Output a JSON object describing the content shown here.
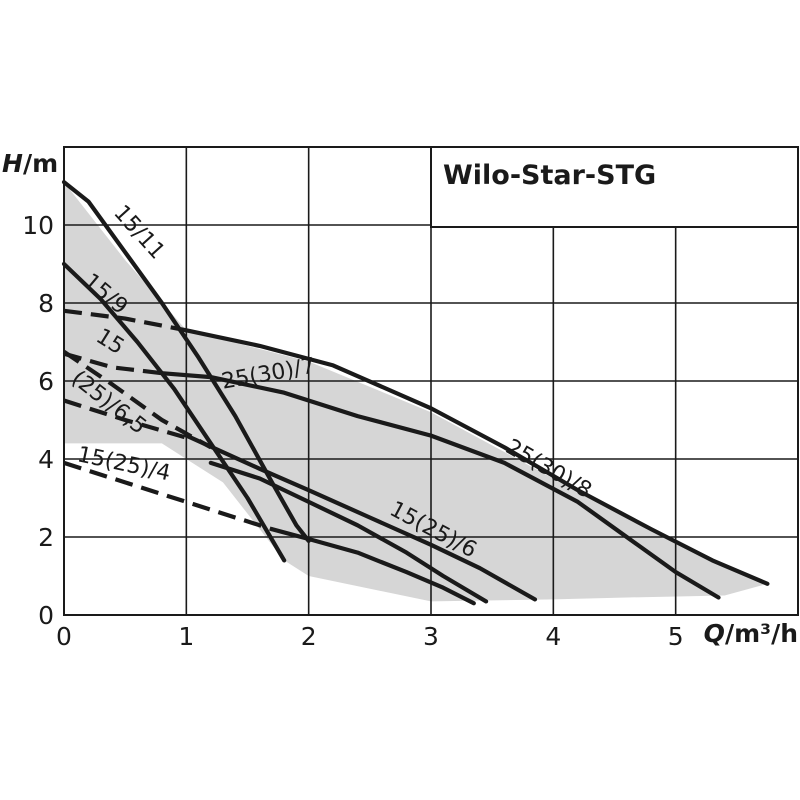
{
  "title": "Wilo-Star-STG",
  "colors": {
    "ink": "#1a1a1a",
    "envelope": "#d6d6d6",
    "background": "#ffffff"
  },
  "chart_data": {
    "type": "line",
    "title": "Wilo-Star-STG",
    "x_axis": {
      "label_var": "Q",
      "label_unit": "/m³/h",
      "min": 0,
      "max": 6,
      "ticks": [
        0,
        1,
        2,
        3,
        4,
        5
      ],
      "grid_step": 1
    },
    "y_axis": {
      "label_var": "H",
      "label_unit": "/m",
      "min": 0,
      "max": 12,
      "ticks": [
        0,
        2,
        4,
        6,
        8,
        10
      ],
      "grid_step": 2
    },
    "grid": true,
    "envelope": [
      [
        0,
        11.1
      ],
      [
        0.5,
        9.1
      ],
      [
        1,
        7.3
      ],
      [
        2,
        6.5
      ],
      [
        3,
        5.2
      ],
      [
        4,
        3.5
      ],
      [
        5,
        1.9
      ],
      [
        5.75,
        0.8
      ],
      [
        5.4,
        0.5
      ],
      [
        4.6,
        0.45
      ],
      [
        4,
        0.4
      ],
      [
        3,
        0.35
      ],
      [
        2,
        1.0
      ],
      [
        1.8,
        1.4
      ],
      [
        1.3,
        3.4
      ],
      [
        1,
        4.0
      ],
      [
        0.8,
        4.4
      ],
      [
        0,
        4.4
      ]
    ],
    "series": [
      {
        "name": "15/11",
        "dashed": false,
        "points": [
          [
            0,
            11.1
          ],
          [
            0.2,
            10.6
          ],
          [
            0.5,
            9.3
          ],
          [
            0.8,
            8.0
          ],
          [
            1.1,
            6.6
          ],
          [
            1.4,
            5.1
          ],
          [
            1.7,
            3.4
          ],
          [
            1.9,
            2.3
          ],
          [
            2.0,
            1.9
          ]
        ]
      },
      {
        "name": "15/9",
        "dashed": false,
        "points": [
          [
            0,
            9.0
          ],
          [
            0.3,
            8.1
          ],
          [
            0.6,
            7.0
          ],
          [
            0.9,
            5.8
          ],
          [
            1.2,
            4.4
          ],
          [
            1.5,
            3.0
          ],
          [
            1.8,
            1.4
          ]
        ]
      },
      {
        "name": "25(30)/8",
        "dashed": false,
        "points": [
          [
            1.0,
            7.3
          ],
          [
            1.6,
            6.9
          ],
          [
            2.2,
            6.4
          ],
          [
            3.0,
            5.3
          ],
          [
            3.6,
            4.3
          ],
          [
            4.2,
            3.2
          ],
          [
            4.8,
            2.2
          ],
          [
            5.3,
            1.4
          ],
          [
            5.75,
            0.8
          ]
        ]
      },
      {
        "name": "25(30)/7",
        "dashed": false,
        "points": [
          [
            0.8,
            6.2
          ],
          [
            1.2,
            6.1
          ],
          [
            1.8,
            5.7
          ],
          [
            2.4,
            5.1
          ],
          [
            3.0,
            4.6
          ],
          [
            3.6,
            3.9
          ],
          [
            4.2,
            2.9
          ],
          [
            4.6,
            2.0
          ],
          [
            5.0,
            1.1
          ],
          [
            5.35,
            0.45
          ]
        ]
      },
      {
        "name": "15(25)/6",
        "dashed": false,
        "points": [
          [
            1.0,
            4.6
          ],
          [
            1.6,
            3.75
          ],
          [
            2.0,
            3.2
          ],
          [
            2.5,
            2.5
          ],
          [
            3.0,
            1.8
          ],
          [
            3.4,
            1.2
          ],
          [
            3.85,
            0.4
          ]
        ]
      },
      {
        "name": "15(25)/6.5",
        "dashed": false,
        "points": [
          [
            1.2,
            3.9
          ],
          [
            1.6,
            3.5
          ],
          [
            2.0,
            2.9
          ],
          [
            2.4,
            2.3
          ],
          [
            2.8,
            1.6
          ],
          [
            3.1,
            1.0
          ],
          [
            3.45,
            0.35
          ]
        ]
      },
      {
        "name": "15(25)/4",
        "dashed": false,
        "points": [
          [
            1.7,
            2.2
          ],
          [
            2.0,
            1.95
          ],
          [
            2.4,
            1.6
          ],
          [
            2.8,
            1.1
          ],
          [
            3.1,
            0.7
          ],
          [
            3.35,
            0.3
          ]
        ]
      },
      {
        "name": "15/11-dashed",
        "dashed": true,
        "points": [
          [
            0,
            7.8
          ],
          [
            0.5,
            7.6
          ],
          [
            1.0,
            7.3
          ]
        ]
      },
      {
        "name": "25(30)/7-dashed",
        "dashed": true,
        "points": [
          [
            0,
            6.7
          ],
          [
            0.4,
            6.35
          ],
          [
            0.8,
            6.2
          ]
        ]
      },
      {
        "name": "15(25)/6.5-dashed",
        "dashed": true,
        "points": [
          [
            0,
            6.75
          ],
          [
            0.4,
            5.9
          ],
          [
            0.8,
            5.0
          ],
          [
            1.2,
            4.3
          ]
        ]
      },
      {
        "name": "15(25)/6-dashed",
        "dashed": true,
        "points": [
          [
            0,
            5.5
          ],
          [
            0.5,
            5.0
          ],
          [
            1.0,
            4.55
          ]
        ]
      },
      {
        "name": "15(25)/4-dashed",
        "dashed": true,
        "points": [
          [
            0,
            3.9
          ],
          [
            0.6,
            3.3
          ],
          [
            1.2,
            2.7
          ],
          [
            1.7,
            2.2
          ]
        ]
      }
    ],
    "labels": [
      {
        "text": "15/11",
        "x": 0.4,
        "y": 10.3,
        "angle": 48
      },
      {
        "text": "15/9",
        "x": 0.15,
        "y": 8.5,
        "angle": 40
      },
      {
        "text": "15",
        "x": 0.25,
        "y": 7.05,
        "angle": 32
      },
      {
        "text": "(25)/6,5",
        "x": 0.05,
        "y": 6.0,
        "angle": 38
      },
      {
        "text": "25(30)/7",
        "x": 1.3,
        "y": 5.8,
        "angle": -10
      },
      {
        "text": "25(30)/8",
        "x": 3.6,
        "y": 4.2,
        "angle": 30
      },
      {
        "text": "15(25)/6",
        "x": 2.65,
        "y": 2.6,
        "angle": 28
      },
      {
        "text": "15(25)/4",
        "x": 0.1,
        "y": 3.95,
        "angle": 12
      }
    ]
  }
}
